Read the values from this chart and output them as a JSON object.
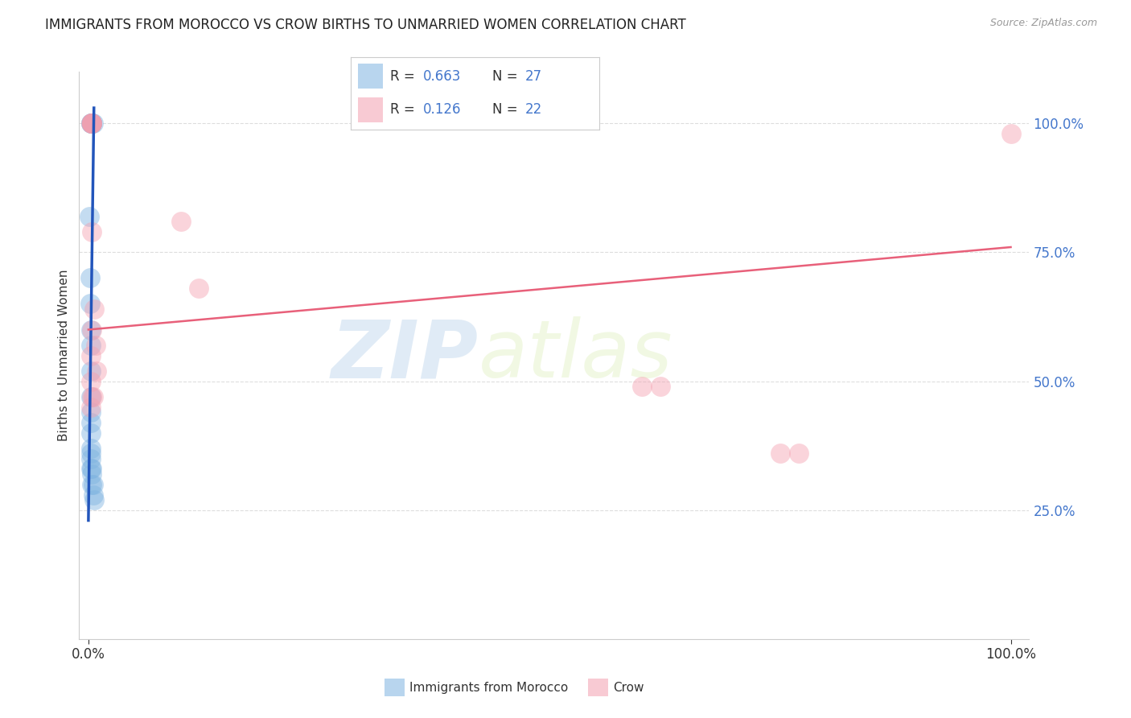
{
  "title": "IMMIGRANTS FROM MOROCCO VS CROW BIRTHS TO UNMARRIED WOMEN CORRELATION CHART",
  "source": "Source: ZipAtlas.com",
  "ylabel": "Births to Unmarried Women",
  "legend1_R": "0.663",
  "legend1_N": "27",
  "legend2_R": "0.126",
  "legend2_N": "22",
  "legend_label1": "Immigrants from Morocco",
  "legend_label2": "Crow",
  "blue_color": "#7EB3E0",
  "pink_color": "#F4A0B0",
  "trend_blue": "#2255BB",
  "trend_pink": "#E8607A",
  "blue_scatter_x": [
    0.003,
    0.004,
    0.004,
    0.004,
    0.004,
    0.005,
    0.003,
    0.001,
    0.002,
    0.002,
    0.003,
    0.003,
    0.003,
    0.003,
    0.003,
    0.003,
    0.003,
    0.003,
    0.003,
    0.003,
    0.003,
    0.004,
    0.004,
    0.004,
    0.005,
    0.005,
    0.006
  ],
  "blue_scatter_y": [
    1.0,
    1.0,
    1.0,
    1.0,
    1.0,
    1.0,
    1.0,
    0.82,
    0.7,
    0.65,
    0.6,
    0.57,
    0.52,
    0.47,
    0.44,
    0.42,
    0.4,
    0.37,
    0.36,
    0.35,
    0.33,
    0.33,
    0.32,
    0.3,
    0.3,
    0.28,
    0.27
  ],
  "pink_scatter_x": [
    0.003,
    0.004,
    0.004,
    0.004,
    0.004,
    0.004,
    0.006,
    0.008,
    0.009,
    0.1,
    0.12,
    0.6,
    0.62,
    0.75,
    0.77,
    1.0,
    0.004,
    0.004,
    0.005,
    0.003,
    0.003,
    0.003
  ],
  "pink_scatter_y": [
    1.0,
    1.0,
    1.0,
    1.0,
    1.0,
    0.79,
    0.64,
    0.57,
    0.52,
    0.81,
    0.68,
    0.49,
    0.49,
    0.36,
    0.36,
    0.98,
    0.6,
    0.47,
    0.47,
    0.45,
    0.5,
    0.55
  ],
  "blue_trend_x0": 0.0,
  "blue_trend_x1": 0.006,
  "blue_trend_y0": 0.23,
  "blue_trend_y1": 1.03,
  "pink_trend_x0": 0.0,
  "pink_trend_x1": 1.0,
  "pink_trend_y0": 0.6,
  "pink_trend_y1": 0.76,
  "xlim": [
    0.0,
    1.0
  ],
  "ylim": [
    0.0,
    1.1
  ],
  "ytick_positions": [
    0.25,
    0.5,
    0.75,
    1.0
  ],
  "watermark_line1": "ZIP",
  "watermark_line2": "atlas",
  "background_color": "#FFFFFF",
  "title_fontsize": 12,
  "right_tick_color": "#4477CC",
  "source_color": "#999999",
  "label_color": "#333333",
  "grid_color": "#DDDDDD"
}
